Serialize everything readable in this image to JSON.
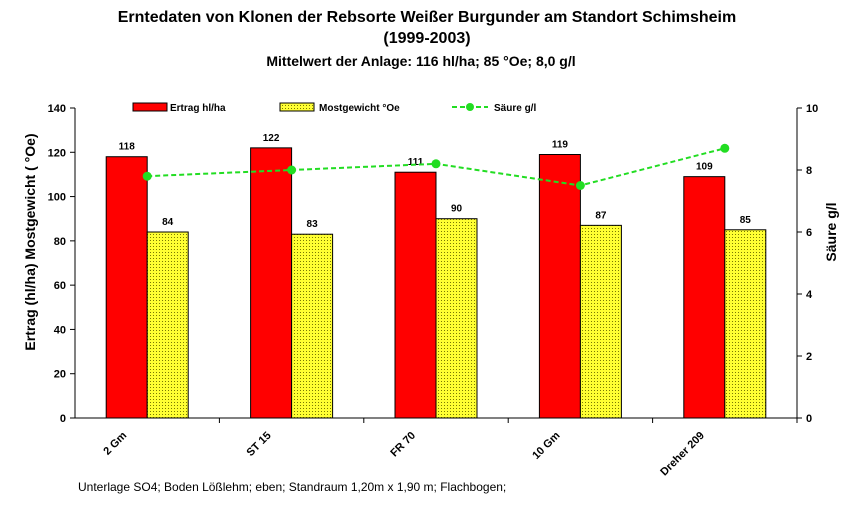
{
  "chart_data": {
    "type": "bar",
    "title_lines": [
      "Erntedaten von Klonen der Rebsorte Weißer Burgunder am Standort Schimsheim",
      "(1999-2003)"
    ],
    "subtitle": "Mittelwert der Anlage: 116 hl/ha; 85 °Oe; 8,0 g/l",
    "categories": [
      "2 Gm",
      "ST 15",
      "FR 70",
      "10 Gm",
      "Dreher 209"
    ],
    "series": [
      {
        "name": "Ertrag hl/ha",
        "type": "bar",
        "axis": "left",
        "color": "#ff0000",
        "values": [
          118,
          122,
          111,
          119,
          109
        ]
      },
      {
        "name": "Mostgewicht °Oe",
        "type": "bar",
        "axis": "left",
        "color": "#ffff33",
        "values": [
          84,
          83,
          90,
          87,
          85
        ]
      },
      {
        "name": "Säure g/l",
        "type": "line",
        "axis": "right",
        "color": "#22dd22",
        "values": [
          7.8,
          8.0,
          8.2,
          7.5,
          8.7
        ]
      }
    ],
    "ylabel": "Ertrag (hl/ha)  Mostgewicht ( °Oe)",
    "y2label": "Säure g/l",
    "ylim": [
      0,
      140
    ],
    "yticks": [
      0,
      20,
      40,
      60,
      80,
      100,
      120,
      140
    ],
    "y2lim": [
      0,
      10
    ],
    "y2ticks": [
      0,
      2,
      4,
      6,
      8,
      10
    ],
    "legend_position": "top",
    "grid": false,
    "footnote": "Unterlage SO4;  Boden Lößlehm; eben; Standraum 1,20m x 1,90 m; Flachbogen;"
  }
}
